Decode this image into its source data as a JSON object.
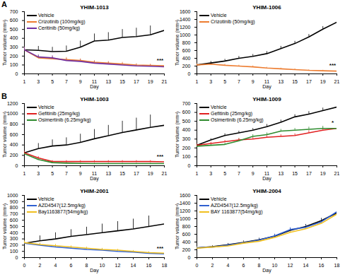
{
  "chart_data": [
    {
      "type": "line",
      "panel": "A",
      "title": "YHIM-1013",
      "x_label": "Day",
      "y_label": "Tumor volume (mm³)",
      "x": [
        1,
        3,
        5,
        7,
        9,
        11,
        13,
        15,
        17,
        19,
        21
      ],
      "xlim": [
        1,
        21
      ],
      "xticks": [
        1,
        3,
        5,
        7,
        9,
        11,
        13,
        15,
        17,
        19,
        21
      ],
      "ylim": [
        0,
        700
      ],
      "yticks": [
        0,
        100,
        200,
        300,
        400,
        500,
        600,
        700
      ],
      "annotation": "***",
      "series": [
        {
          "name": "Vehicle",
          "color": "#000000",
          "values": [
            270,
            265,
            250,
            255,
            300,
            370,
            380,
            410,
            420,
            440,
            490
          ],
          "error": [
            40,
            45,
            50,
            60,
            70,
            80,
            85,
            90,
            95,
            100,
            110
          ]
        },
        {
          "name": "Crizotinib (100mg/kg)",
          "color": "#ed7d31",
          "values": [
            270,
            180,
            170,
            160,
            150,
            130,
            120,
            110,
            100,
            95,
            90
          ],
          "error": [
            30,
            25,
            25,
            25,
            20,
            20,
            20,
            20,
            15,
            15,
            15
          ]
        },
        {
          "name": "Ceritinib (50mg/kg)",
          "color": "#7030a0",
          "values": [
            270,
            190,
            180,
            150,
            140,
            120,
            110,
            100,
            90,
            85,
            80
          ],
          "error": [
            30,
            25,
            25,
            20,
            20,
            20,
            20,
            15,
            15,
            15,
            15
          ]
        }
      ]
    },
    {
      "type": "line",
      "title": "YHIM-1006",
      "x_label": "Day",
      "y_label": "Tumor volume (mm³)",
      "x": [
        1,
        3,
        5,
        7,
        9,
        11,
        13,
        15,
        17,
        19,
        21
      ],
      "xlim": [
        1,
        21
      ],
      "xticks": [
        1,
        3,
        5,
        7,
        9,
        11,
        13,
        15,
        17,
        19,
        21
      ],
      "ylim": [
        0,
        1600
      ],
      "yticks": [
        0,
        200,
        400,
        600,
        800,
        1000,
        1200,
        1400,
        1600
      ],
      "annotation": "***",
      "series": [
        {
          "name": "Vehicle",
          "color": "#000000",
          "values": [
            230,
            280,
            330,
            400,
            450,
            520,
            650,
            780,
            950,
            1150,
            1330
          ],
          "error": [
            40,
            40,
            45,
            50,
            50,
            55,
            60,
            60,
            65,
            70,
            70
          ]
        },
        {
          "name": "Crizotinib (50mg/kg)",
          "color": "#ed7d31",
          "values": [
            230,
            250,
            220,
            200,
            180,
            150,
            130,
            110,
            90,
            80,
            70
          ],
          "error": [
            30,
            30,
            30,
            25,
            25,
            20,
            20,
            20,
            15,
            15,
            15
          ]
        }
      ]
    },
    {
      "type": "line",
      "panel": "B",
      "title": "YHIM-1003",
      "x_label": "Day",
      "y_label": "Tumor volume (mm³)",
      "x": [
        1,
        3,
        5,
        7,
        9,
        11,
        13,
        15,
        17,
        19,
        21
      ],
      "xlim": [
        1,
        21
      ],
      "xticks": [
        1,
        3,
        5,
        7,
        9,
        11,
        13,
        15,
        17,
        19,
        21
      ],
      "ylim": [
        0,
        1200
      ],
      "yticks": [
        0,
        200,
        400,
        600,
        800,
        1000,
        1200
      ],
      "annotation": "***",
      "series": [
        {
          "name": "Vehicle",
          "color": "#000000",
          "values": [
            250,
            330,
            380,
            400,
            450,
            520,
            580,
            640,
            690,
            740,
            780
          ],
          "error": [
            80,
            100,
            120,
            140,
            160,
            180,
            200,
            220,
            230,
            240,
            250
          ]
        },
        {
          "name": "Gefitinib (25mg/kg)",
          "color": "#e02020",
          "values": [
            250,
            150,
            80,
            80,
            80,
            80,
            80,
            80,
            80,
            80,
            75
          ],
          "error": [
            30,
            25,
            20,
            20,
            20,
            20,
            20,
            20,
            20,
            20,
            20
          ]
        },
        {
          "name": "Osimertinib (6.25mg/kg)",
          "color": "#2e8b2e",
          "values": [
            230,
            120,
            60,
            50,
            45,
            40,
            40,
            40,
            40,
            40,
            40
          ],
          "error": [
            30,
            20,
            15,
            15,
            15,
            10,
            10,
            10,
            10,
            10,
            10
          ]
        }
      ]
    },
    {
      "type": "line",
      "title": "YHIM-1009",
      "x_label": "Day",
      "y_label": "Tumor volume (mm³)",
      "x": [
        1,
        3,
        5,
        7,
        9,
        11,
        13,
        15,
        17,
        19,
        21
      ],
      "xlim": [
        1,
        21
      ],
      "xticks": [
        1,
        3,
        5,
        7,
        9,
        11,
        13,
        15,
        17,
        19,
        21
      ],
      "ylim": [
        0,
        700
      ],
      "yticks": [
        0,
        100,
        200,
        300,
        400,
        500,
        600,
        700
      ],
      "annotation": "*",
      "series": [
        {
          "name": "Vehicle",
          "color": "#000000",
          "values": [
            230,
            290,
            340,
            370,
            400,
            440,
            490,
            550,
            580,
            620,
            660
          ],
          "error": [
            15,
            15,
            20,
            20,
            20,
            25,
            25,
            25,
            30,
            30,
            30
          ]
        },
        {
          "name": "Gefitinib (25mg/kg)",
          "color": "#e02020",
          "values": [
            230,
            250,
            270,
            290,
            300,
            320,
            330,
            340,
            370,
            400,
            420
          ],
          "error": [
            15,
            15,
            15,
            20,
            20,
            20,
            20,
            20,
            25,
            25,
            25
          ]
        },
        {
          "name": "Osimertinib (6.25mg/kg)",
          "color": "#2e8b2e",
          "values": [
            220,
            230,
            240,
            280,
            330,
            350,
            390,
            400,
            410,
            420,
            420
          ],
          "error": [
            15,
            15,
            15,
            20,
            20,
            20,
            20,
            20,
            25,
            25,
            25
          ]
        }
      ]
    },
    {
      "type": "line",
      "title": "YHIM-2001",
      "x_label": "Day",
      "y_label": "Tumor volume (mm³)",
      "x": [
        0,
        2,
        4,
        6,
        8,
        10,
        12,
        14,
        16,
        18
      ],
      "xlim": [
        0,
        18
      ],
      "xticks": [
        0,
        2,
        4,
        6,
        8,
        10,
        12,
        14,
        16,
        18
      ],
      "ylim": [
        0,
        1000
      ],
      "yticks": [
        0,
        100,
        200,
        300,
        400,
        500,
        600,
        700,
        800,
        900,
        1000
      ],
      "annotation": "***",
      "series": [
        {
          "name": "Vehicle",
          "color": "#000000",
          "values": [
            230,
            270,
            300,
            340,
            370,
            400,
            430,
            460,
            500,
            540
          ],
          "error": [
            60,
            80,
            100,
            110,
            120,
            140,
            150,
            160,
            170,
            190
          ]
        },
        {
          "name": "AZD4547(12.5mg/kg)",
          "color": "#2f5fd0",
          "values": [
            230,
            200,
            170,
            150,
            130,
            120,
            100,
            90,
            70,
            60
          ],
          "error": [
            30,
            25,
            25,
            20,
            20,
            20,
            15,
            15,
            15,
            15
          ]
        },
        {
          "name": "Bay1163877(54mg/kg)",
          "color": "#f0c020",
          "values": [
            240,
            210,
            190,
            170,
            150,
            130,
            120,
            100,
            80,
            70
          ],
          "error": [
            30,
            25,
            25,
            20,
            20,
            20,
            15,
            15,
            15,
            15
          ]
        }
      ]
    },
    {
      "type": "line",
      "title": "YHIM-2004",
      "x_label": "Day",
      "y_label": "Tumor volume (mm³)",
      "x": [
        0,
        2,
        4,
        6,
        8,
        10,
        12,
        14,
        16,
        18
      ],
      "xlim": [
        0,
        18
      ],
      "xticks": [
        0,
        2,
        4,
        6,
        8,
        10,
        12,
        14,
        16,
        18
      ],
      "ylim": [
        0,
        1600
      ],
      "yticks": [
        0,
        200,
        400,
        600,
        800,
        1000,
        1200,
        1400,
        1600
      ],
      "series": [
        {
          "name": "Vehicle",
          "color": "#000000",
          "values": [
            250,
            280,
            330,
            390,
            460,
            550,
            700,
            800,
            950,
            1150
          ],
          "error": [
            30,
            30,
            35,
            40,
            40,
            45,
            50,
            55,
            60,
            60
          ]
        },
        {
          "name": "AZD4547(12.5mg/kg)",
          "color": "#2f5fd0",
          "values": [
            250,
            270,
            320,
            380,
            450,
            560,
            720,
            780,
            920,
            1180
          ],
          "error": [
            30,
            30,
            35,
            40,
            40,
            45,
            50,
            55,
            60,
            60
          ]
        },
        {
          "name": "BAY 1163877(54mg/kg)",
          "color": "#f0c020",
          "values": [
            240,
            270,
            300,
            370,
            420,
            520,
            650,
            740,
            880,
            1120
          ],
          "error": [
            30,
            30,
            35,
            40,
            40,
            45,
            50,
            55,
            60,
            60
          ]
        }
      ]
    }
  ]
}
